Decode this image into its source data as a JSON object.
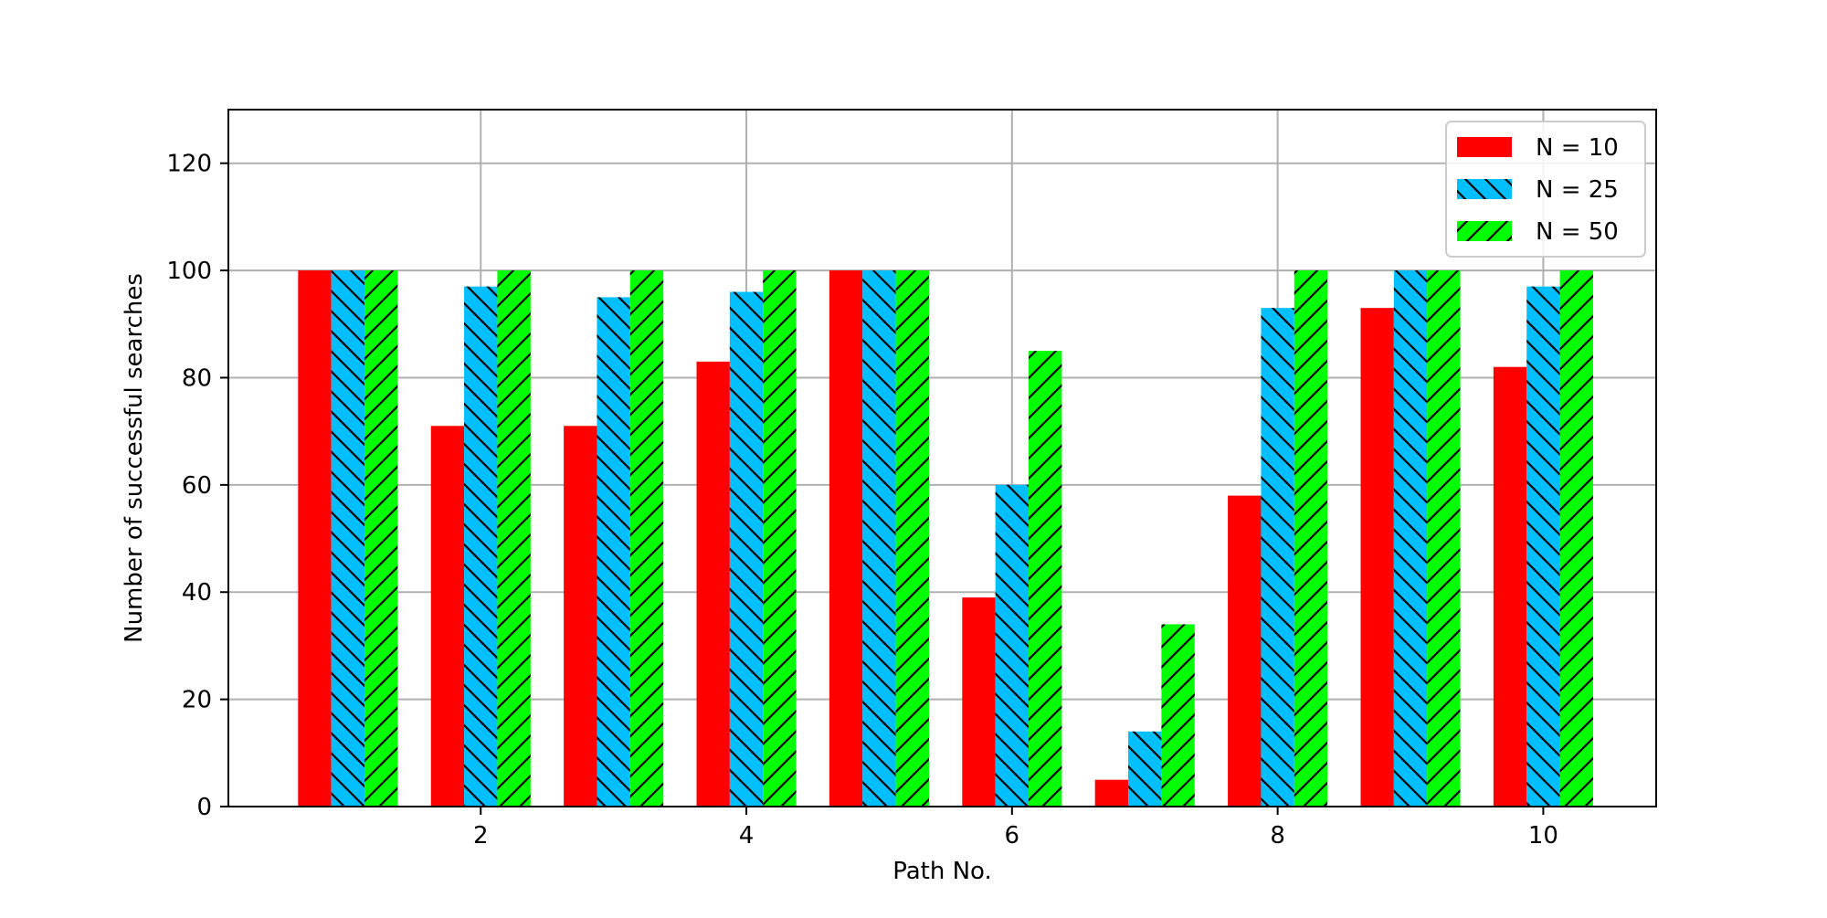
{
  "chart_data": {
    "type": "bar",
    "title": "",
    "xlabel": "Path No.",
    "ylabel": "Number of successful searches",
    "x": [
      1,
      2,
      3,
      4,
      5,
      6,
      7,
      8,
      9,
      10
    ],
    "xlim": [
      0.1,
      10.85
    ],
    "ylim": [
      0,
      130
    ],
    "xticks": [
      2,
      4,
      6,
      8,
      10
    ],
    "yticks": [
      0,
      20,
      40,
      60,
      80,
      100,
      120
    ],
    "grid": true,
    "legend_position": "top-right",
    "series": [
      {
        "name": "N = 10",
        "color": "#ff0000",
        "hatch": "none",
        "values": [
          100,
          71,
          71,
          83,
          100,
          39,
          5,
          58,
          93,
          82
        ]
      },
      {
        "name": "N = 25",
        "color": "#00bfff",
        "hatch": "backslash",
        "values": [
          100,
          97,
          95,
          96,
          100,
          60,
          14,
          93,
          100,
          97
        ]
      },
      {
        "name": "N = 50",
        "color": "#00ff00",
        "hatch": "slash",
        "values": [
          100,
          100,
          100,
          100,
          100,
          85,
          34,
          100,
          100,
          100
        ]
      }
    ]
  }
}
